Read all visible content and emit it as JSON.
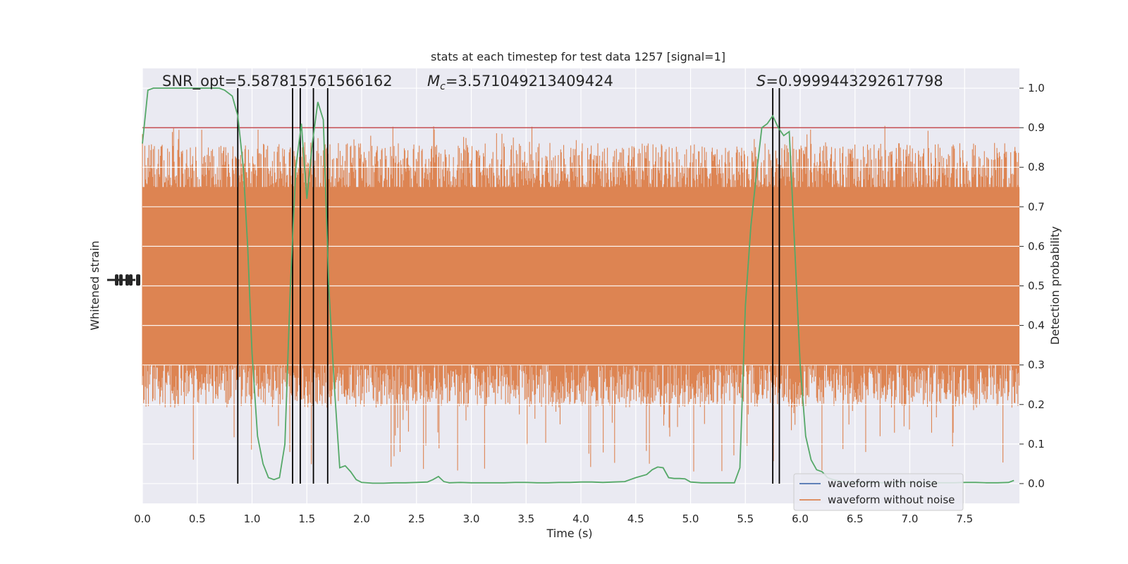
{
  "chart_data": {
    "type": "line",
    "title": "stats at each timestep for test data 1257 [signal=1]",
    "xlabel": "Time (s)",
    "ylabel_left": "Whitened strain",
    "ylabel_right": "Detection probability",
    "xlim": [
      0.0,
      8.0
    ],
    "ylim_right": [
      -0.05,
      1.05
    ],
    "x_ticks": [
      "0.0",
      "0.5",
      "1.0",
      "1.5",
      "2.0",
      "2.5",
      "3.0",
      "3.5",
      "4.0",
      "4.5",
      "5.0",
      "5.5",
      "6.0",
      "6.5",
      "7.0",
      "7.5"
    ],
    "y_ticks_right": [
      "0.0",
      "0.1",
      "0.2",
      "0.3",
      "0.4",
      "0.5",
      "0.6",
      "0.7",
      "0.8",
      "0.9",
      "1.0"
    ],
    "grid": true,
    "annotations": {
      "snr": "SNR_opt=5.587815761566162",
      "mc_symbol": "M",
      "mc_sub": "c",
      "mc_value": "=3.571049213409424",
      "s_symbol": "S",
      "s_value": "=0.9999443292617798"
    },
    "threshold": {
      "value": 0.9,
      "color": "#c44e52"
    },
    "trigger_lines": [
      0.87,
      1.37,
      1.44,
      1.56,
      1.69,
      5.75,
      5.81
    ],
    "detection_probability": {
      "color": "#55a868",
      "x": [
        0.0,
        0.05,
        0.1,
        0.15,
        0.2,
        0.3,
        0.4,
        0.5,
        0.6,
        0.7,
        0.75,
        0.82,
        0.87,
        0.92,
        0.96,
        1.0,
        1.05,
        1.1,
        1.15,
        1.2,
        1.25,
        1.3,
        1.35,
        1.4,
        1.45,
        1.5,
        1.55,
        1.6,
        1.65,
        1.7,
        1.75,
        1.8,
        1.85,
        1.9,
        1.95,
        2.0,
        2.1,
        2.2,
        2.3,
        2.4,
        2.5,
        2.6,
        2.65,
        2.7,
        2.75,
        2.8,
        2.9,
        3.0,
        3.1,
        3.2,
        3.3,
        3.4,
        3.5,
        3.6,
        3.7,
        3.8,
        3.9,
        4.0,
        4.1,
        4.2,
        4.3,
        4.4,
        4.5,
        4.6,
        4.65,
        4.7,
        4.75,
        4.8,
        4.85,
        4.9,
        4.95,
        5.0,
        5.1,
        5.2,
        5.3,
        5.4,
        5.45,
        5.5,
        5.55,
        5.6,
        5.65,
        5.7,
        5.75,
        5.8,
        5.85,
        5.9,
        5.95,
        6.0,
        6.05,
        6.1,
        6.15,
        6.2,
        6.25,
        6.3,
        6.4,
        6.5,
        6.6,
        6.7,
        6.8,
        6.9,
        7.0,
        7.1,
        7.2,
        7.3,
        7.4,
        7.5,
        7.6,
        7.7,
        7.8,
        7.9,
        7.95
      ],
      "y": [
        0.86,
        0.995,
        1.0,
        1.0,
        1.0,
        1.0,
        1.0,
        1.0,
        1.0,
        1.0,
        0.995,
        0.98,
        0.93,
        0.8,
        0.6,
        0.33,
        0.12,
        0.05,
        0.015,
        0.01,
        0.015,
        0.1,
        0.5,
        0.8,
        0.91,
        0.72,
        0.86,
        0.965,
        0.92,
        0.5,
        0.25,
        0.04,
        0.045,
        0.03,
        0.01,
        0.003,
        0.001,
        0.001,
        0.002,
        0.002,
        0.003,
        0.004,
        0.01,
        0.018,
        0.005,
        0.002,
        0.003,
        0.002,
        0.002,
        0.002,
        0.002,
        0.003,
        0.003,
        0.002,
        0.002,
        0.003,
        0.003,
        0.004,
        0.004,
        0.003,
        0.004,
        0.005,
        0.015,
        0.023,
        0.035,
        0.042,
        0.04,
        0.015,
        0.013,
        0.013,
        0.012,
        0.004,
        0.002,
        0.002,
        0.002,
        0.002,
        0.04,
        0.45,
        0.65,
        0.78,
        0.9,
        0.91,
        0.93,
        0.9,
        0.88,
        0.89,
        0.6,
        0.3,
        0.12,
        0.06,
        0.035,
        0.03,
        0.015,
        0.01,
        0.004,
        0.003,
        0.002,
        0.002,
        0.002,
        0.003,
        0.003,
        0.002,
        0.002,
        0.002,
        0.002,
        0.003,
        0.003,
        0.002,
        0.002,
        0.003,
        0.008
      ]
    },
    "legend": {
      "placement": "lower-right",
      "entries": [
        {
          "label": "waveform with noise",
          "color": "#4c72b0"
        },
        {
          "label": "waveform without noise",
          "color": "#dd8452"
        }
      ]
    },
    "noise_band": {
      "color": "#dd8452",
      "core_range": [
        0.27,
        0.77
      ],
      "peak_range": [
        -0.05,
        1.0
      ]
    },
    "colors": {
      "plot_bg": "#eaeaf2",
      "grid": "#ffffff",
      "trigger": "#000000"
    }
  }
}
